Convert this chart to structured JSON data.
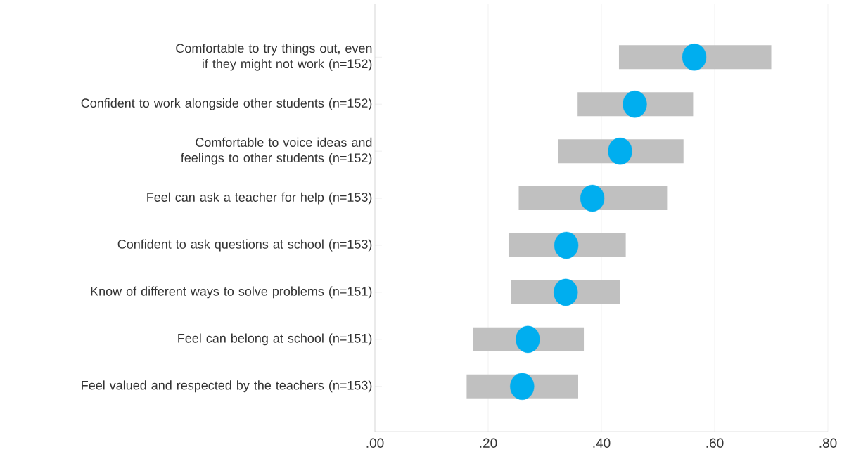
{
  "chart_data": {
    "type": "scatter",
    "orientation": "horizontal",
    "color": "#00aeef",
    "grid": "x",
    "categories": [
      "Comfortable to try things out, even if they might not work (n=152)",
      "Confident to work alongside other students (n=152)",
      "Comfortable to voice ideas and feelings to other students (n=152)",
      "Feel can ask a teacher for help (n=153)",
      "Confident to ask questions at school (n=153)",
      "Know of different ways to solve problems (n=151)",
      "Feel can belong at school (n=151)",
      "Feel valued and respected by the teachers (n=153)"
    ],
    "values": [
      0.564,
      0.459,
      0.433,
      0.384,
      0.338,
      0.337,
      0.27,
      0.26
    ],
    "errors": [
      [
        0.431,
        0.7
      ],
      [
        0.358,
        0.562
      ],
      [
        0.323,
        0.545
      ],
      [
        0.254,
        0.516
      ],
      [
        0.236,
        0.443
      ],
      [
        0.241,
        0.433
      ],
      [
        0.173,
        0.369
      ],
      [
        0.162,
        0.359
      ]
    ],
    "xlim": [
      0,
      0.8
    ],
    "xticks": [
      {
        "value": 0,
        "label": ".00"
      },
      {
        "value": 0.2,
        "label": ".20"
      },
      {
        "value": 0.4,
        "label": ".40"
      },
      {
        "value": 0.6,
        "label": ".60"
      },
      {
        "value": 0.8,
        "label": ".80"
      }
    ]
  }
}
